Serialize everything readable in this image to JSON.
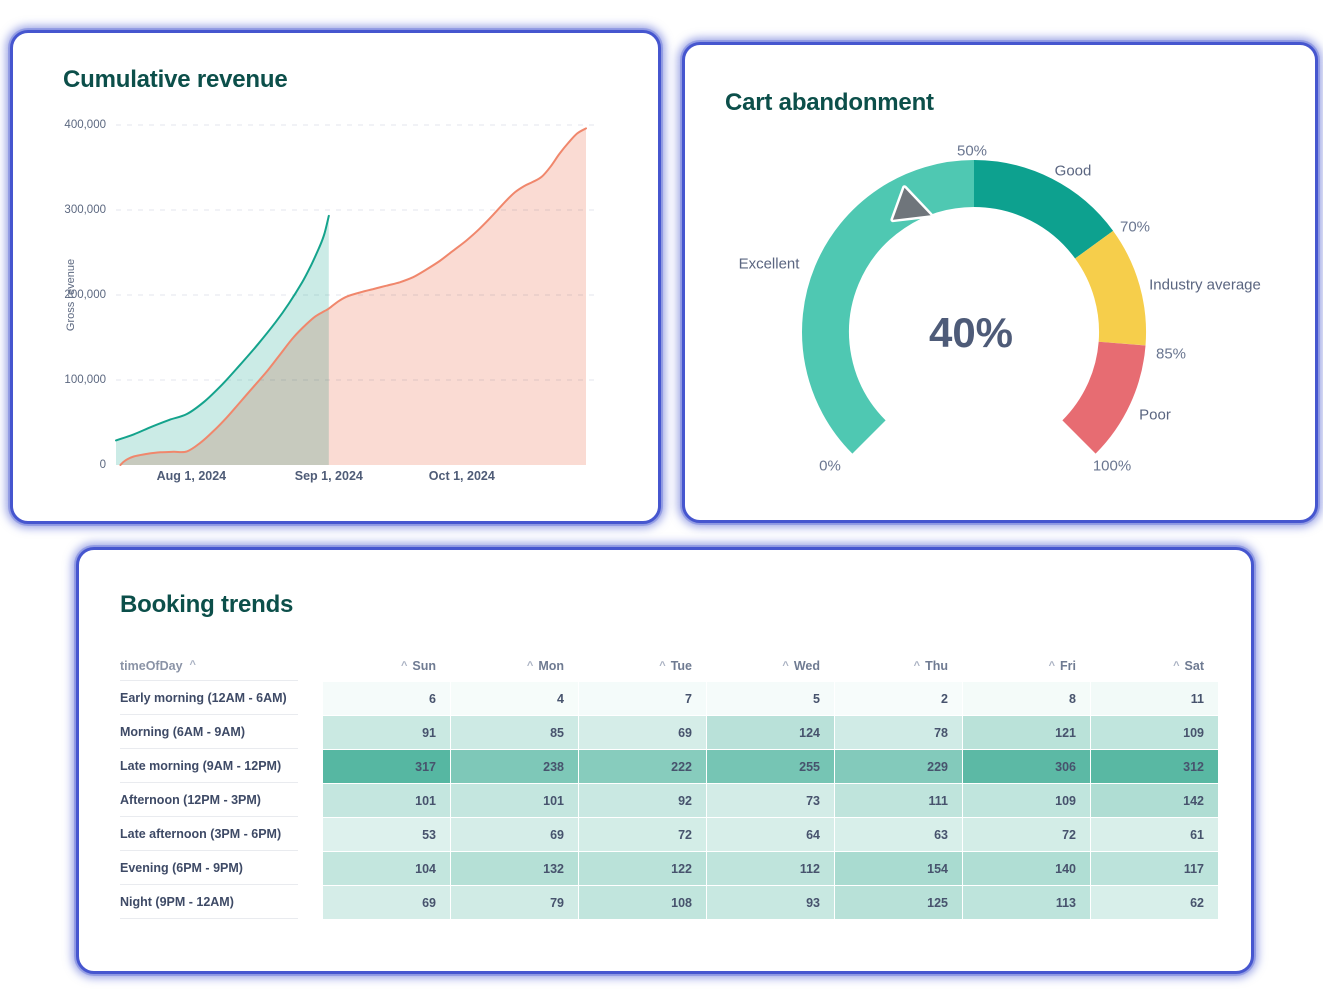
{
  "chart_data": [
    {
      "type": "area",
      "title": "Cumulative revenue",
      "ylabel": "Gross revenue",
      "ylim": [
        0,
        400000
      ],
      "y_ticks": [
        400000,
        300000,
        200000,
        100000,
        0
      ],
      "y_tick_labels": [
        "400,000",
        "300,000",
        "200,000",
        "100,000",
        "0"
      ],
      "x_tick_labels": [
        "Aug 1, 2024",
        "Sep 1, 2024",
        "Oct 1, 2024"
      ],
      "x_tick_days": [
        17,
        48,
        78
      ],
      "grid": "dashed-horizontal",
      "legend": "none",
      "series": [
        {
          "name": "current-period-revenue",
          "line_color": "#14A38C",
          "fill_color": "rgba(20,163,140,0.22)",
          "points": [
            [
              0,
              29000
            ],
            [
              4,
              36000
            ],
            [
              8,
              45000
            ],
            [
              12,
              53000
            ],
            [
              16,
              60000
            ],
            [
              20,
              75000
            ],
            [
              24,
              95000
            ],
            [
              28,
              118000
            ],
            [
              32,
              142000
            ],
            [
              36,
              168000
            ],
            [
              39,
              190000
            ],
            [
              42,
              215000
            ],
            [
              44,
              235000
            ],
            [
              46,
              258000
            ],
            [
              47,
              272000
            ],
            [
              48,
              293000
            ]
          ]
        },
        {
          "name": "previous-period-revenue",
          "line_color": "#F0876C",
          "fill_color": "rgba(240,135,108,0.30)",
          "points": [
            [
              1,
              0
            ],
            [
              2,
              5000
            ],
            [
              4,
              10000
            ],
            [
              7,
              13000
            ],
            [
              10,
              15000
            ],
            [
              13,
              15500
            ],
            [
              16,
              16000
            ],
            [
              19,
              26000
            ],
            [
              22,
              40000
            ],
            [
              25,
              56000
            ],
            [
              28,
              74000
            ],
            [
              31,
              92000
            ],
            [
              34,
              110000
            ],
            [
              37,
              130000
            ],
            [
              40,
              150000
            ],
            [
              43,
              166000
            ],
            [
              45,
              175000
            ],
            [
              47,
              181000
            ],
            [
              48,
              184000
            ],
            [
              50,
              192000
            ],
            [
              52,
              198000
            ],
            [
              55,
              203000
            ],
            [
              58,
              207000
            ],
            [
              61,
              211000
            ],
            [
              64,
              215000
            ],
            [
              67,
              221000
            ],
            [
              70,
              230000
            ],
            [
              73,
              240000
            ],
            [
              76,
              252000
            ],
            [
              79,
              264000
            ],
            [
              82,
              278000
            ],
            [
              85,
              294000
            ],
            [
              88,
              311000
            ],
            [
              90,
              321000
            ],
            [
              92,
              328000
            ],
            [
              94,
              333000
            ],
            [
              96,
              339000
            ],
            [
              98,
              351000
            ],
            [
              100,
              366000
            ],
            [
              102,
              379000
            ],
            [
              104,
              390000
            ],
            [
              106,
              396000
            ]
          ]
        }
      ]
    },
    {
      "type": "gauge",
      "title": "Cart abandonment",
      "value": 40,
      "value_label": "40%",
      "min": 0,
      "max": 100,
      "needle_color": "#6F757B",
      "axis_tick_labels": [
        "0%",
        "50%",
        "70%",
        "85%",
        "100%"
      ],
      "segments": [
        {
          "label": "Excellent",
          "from": 0,
          "to": 50,
          "color": "#4FC8B2"
        },
        {
          "label": "Good",
          "from": 50,
          "to": 70,
          "color": "#0DA18F"
        },
        {
          "label": "Industry average",
          "from": 70,
          "to": 85,
          "color": "#F6CE4B"
        },
        {
          "label": "Poor",
          "from": 85,
          "to": 100,
          "color": "#E76C72"
        }
      ]
    },
    {
      "type": "heatmap",
      "title": "Booking trends",
      "row_header": "timeOfDay",
      "sort_caret": "^",
      "columns": [
        "Sun",
        "Mon",
        "Tue",
        "Wed",
        "Thu",
        "Fri",
        "Sat"
      ],
      "rows": [
        {
          "label": "Early morning (12AM - 6AM)",
          "values": [
            6,
            4,
            7,
            5,
            2,
            8,
            11
          ]
        },
        {
          "label": "Morning (6AM - 9AM)",
          "values": [
            91,
            85,
            69,
            124,
            78,
            121,
            109
          ]
        },
        {
          "label": "Late morning (9AM - 12PM)",
          "values": [
            317,
            238,
            222,
            255,
            229,
            306,
            312
          ]
        },
        {
          "label": "Afternoon (12PM - 3PM)",
          "values": [
            101,
            101,
            92,
            73,
            111,
            109,
            142
          ]
        },
        {
          "label": "Late afternoon (3PM - 6PM)",
          "values": [
            53,
            69,
            72,
            64,
            63,
            72,
            61
          ]
        },
        {
          "label": "Evening (6PM - 9PM)",
          "values": [
            104,
            132,
            122,
            112,
            154,
            140,
            117
          ]
        },
        {
          "label": "Night (9PM - 12AM)",
          "values": [
            69,
            79,
            108,
            93,
            125,
            113,
            62
          ]
        }
      ],
      "color_scale": {
        "min": 2,
        "max": 317,
        "low_color": "#F7FCFB",
        "high_color": "#56B7A2"
      }
    }
  ],
  "theme": {
    "card_border_color": "#4656cf",
    "title_color": "#0C4F4A",
    "axis_text_color": "#5C6880",
    "grid_color": "#E3E6EC"
  }
}
